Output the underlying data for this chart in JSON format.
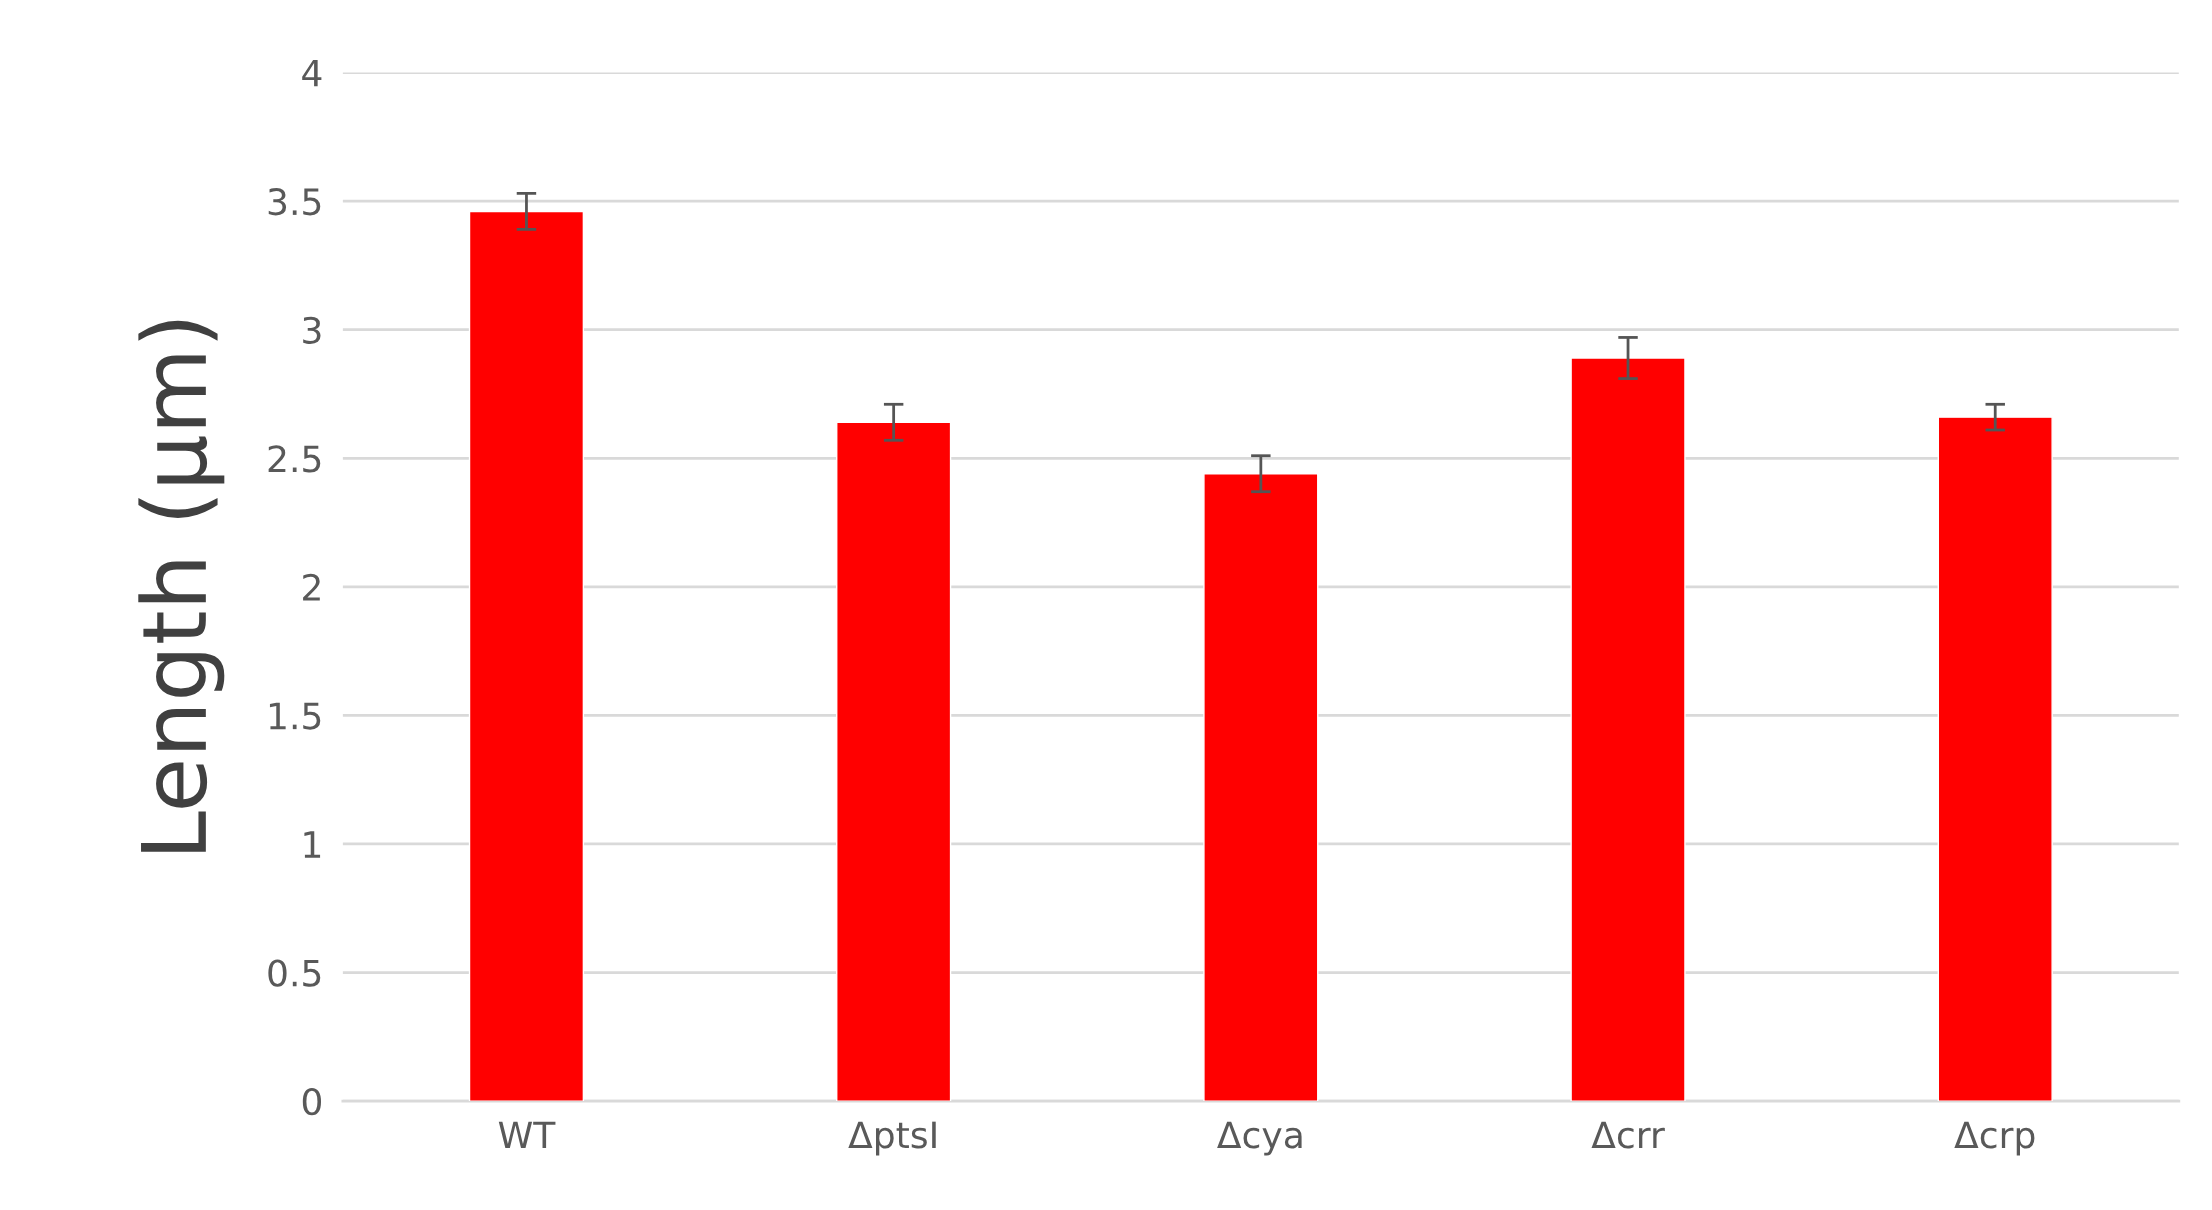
{
  "chart_data": {
    "type": "bar",
    "ylabel": "Length (μm)",
    "categories": [
      "WT",
      "ΔptsI",
      "Δcya",
      "Δcrr",
      "Δcrp"
    ],
    "values": [
      3.46,
      2.64,
      2.44,
      2.89,
      2.66
    ],
    "color": "#ff0000",
    "errors": [
      0.07,
      0.07,
      0.07,
      0.08,
      0.05
    ],
    "ylim": [
      0,
      4
    ],
    "yticks": [
      0,
      0.5,
      1,
      1.5,
      2,
      2.5,
      3,
      3.5,
      4
    ],
    "grid": "y"
  }
}
